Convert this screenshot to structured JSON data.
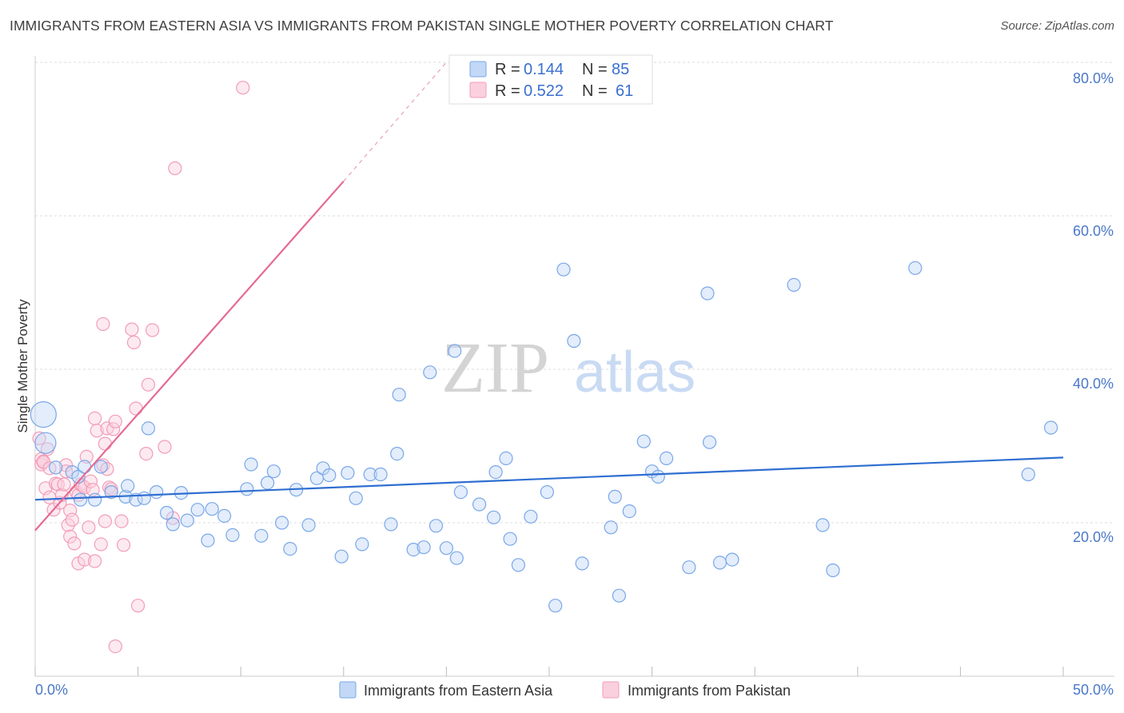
{
  "title": "IMMIGRANTS FROM EASTERN ASIA VS IMMIGRANTS FROM PAKISTAN SINGLE MOTHER POVERTY CORRELATION CHART",
  "source": "Source: ZipAtlas.com",
  "watermark": {
    "zip": "ZIP",
    "atlas": "atlas"
  },
  "legend_top": [
    {
      "r_label": "R =",
      "r_value": "0.144",
      "n_label": "N =",
      "n_value": "85",
      "color": "#7aa7e8"
    },
    {
      "r_label": "R =",
      "r_value": "0.522",
      "n_label": "N =",
      "n_value": "61",
      "color": "#f29db8"
    }
  ],
  "chart_data": {
    "type": "scatter",
    "title": "IMMIGRANTS FROM EASTERN ASIA VS IMMIGRANTS FROM PAKISTAN SINGLE MOTHER POVERTY CORRELATION CHART",
    "xlabel": "",
    "ylabel": "Single Mother Poverty",
    "xlim": [
      0,
      50
    ],
    "ylim": [
      0,
      80
    ],
    "x_tick_labels": [
      "0.0%",
      "50.0%"
    ],
    "y_ticks": [
      20,
      40,
      60,
      80
    ],
    "y_tick_labels": [
      "20.0%",
      "40.0%",
      "60.0%",
      "80.0%"
    ],
    "grid": true,
    "series": [
      {
        "name": "Immigrants from Eastern Asia",
        "color": "#7aa7e8",
        "trend": {
          "x0": 0,
          "y0": 23.0,
          "x1": 50,
          "y1": 28.5
        },
        "points": [
          [
            0.4,
            34.1
          ],
          [
            0.5,
            30.4
          ],
          [
            1.0,
            27.2
          ],
          [
            1.8,
            26.6
          ],
          [
            2.1,
            26.0
          ],
          [
            2.2,
            23.0
          ],
          [
            2.4,
            27.3
          ],
          [
            2.9,
            23.0
          ],
          [
            3.2,
            27.3
          ],
          [
            3.7,
            24.0
          ],
          [
            4.4,
            23.4
          ],
          [
            4.5,
            24.8
          ],
          [
            4.9,
            23.0
          ],
          [
            5.3,
            23.2
          ],
          [
            5.5,
            32.3
          ],
          [
            5.9,
            24.0
          ],
          [
            6.4,
            21.3
          ],
          [
            6.7,
            19.8
          ],
          [
            7.1,
            23.9
          ],
          [
            7.4,
            20.3
          ],
          [
            7.9,
            21.7
          ],
          [
            8.4,
            17.7
          ],
          [
            8.6,
            21.8
          ],
          [
            9.2,
            20.9
          ],
          [
            9.6,
            18.4
          ],
          [
            10.3,
            24.4
          ],
          [
            10.5,
            27.6
          ],
          [
            11.0,
            18.3
          ],
          [
            11.3,
            25.2
          ],
          [
            11.6,
            26.7
          ],
          [
            12.0,
            20.0
          ],
          [
            12.4,
            16.6
          ],
          [
            12.7,
            24.3
          ],
          [
            13.3,
            19.7
          ],
          [
            13.7,
            25.8
          ],
          [
            14.0,
            27.1
          ],
          [
            14.3,
            26.2
          ],
          [
            14.9,
            15.6
          ],
          [
            15.2,
            26.5
          ],
          [
            15.6,
            23.2
          ],
          [
            15.9,
            17.2
          ],
          [
            16.3,
            26.3
          ],
          [
            16.8,
            26.3
          ],
          [
            17.3,
            19.8
          ],
          [
            17.6,
            29.0
          ],
          [
            17.7,
            36.7
          ],
          [
            18.4,
            16.5
          ],
          [
            18.9,
            16.8
          ],
          [
            19.2,
            39.6
          ],
          [
            19.5,
            19.6
          ],
          [
            20.0,
            16.7
          ],
          [
            20.4,
            42.4
          ],
          [
            20.5,
            15.4
          ],
          [
            20.7,
            24.0
          ],
          [
            21.6,
            22.4
          ],
          [
            22.3,
            20.7
          ],
          [
            22.4,
            26.6
          ],
          [
            22.9,
            28.4
          ],
          [
            23.1,
            17.9
          ],
          [
            23.5,
            14.5
          ],
          [
            24.1,
            20.8
          ],
          [
            24.9,
            24.0
          ],
          [
            25.3,
            9.2
          ],
          [
            25.7,
            53.0
          ],
          [
            26.2,
            43.7
          ],
          [
            26.6,
            14.7
          ],
          [
            28.0,
            19.4
          ],
          [
            28.2,
            23.4
          ],
          [
            28.4,
            10.5
          ],
          [
            28.9,
            21.5
          ],
          [
            29.6,
            30.6
          ],
          [
            30.0,
            26.7
          ],
          [
            30.3,
            26.0
          ],
          [
            30.7,
            28.4
          ],
          [
            31.8,
            14.2
          ],
          [
            32.7,
            49.9
          ],
          [
            32.8,
            30.5
          ],
          [
            33.3,
            14.8
          ],
          [
            33.9,
            15.2
          ],
          [
            36.9,
            51.0
          ],
          [
            38.3,
            19.7
          ],
          [
            38.8,
            13.8
          ],
          [
            42.8,
            53.2
          ],
          [
            48.3,
            26.3
          ],
          [
            49.4,
            32.4
          ]
        ]
      },
      {
        "name": "Immigrants from Pakistan",
        "color": "#f29db8",
        "trend": {
          "x0": 0,
          "y0": 19.0,
          "x1": 15.0,
          "y1": 64.5
        },
        "trend_dashed": {
          "x0": 15.0,
          "y0": 64.5,
          "x1": 20.0,
          "y1": 80.0
        },
        "points": [
          [
            0.2,
            31.0
          ],
          [
            0.3,
            28.3
          ],
          [
            0.3,
            27.6
          ],
          [
            0.4,
            28.0
          ],
          [
            0.4,
            27.9
          ],
          [
            0.5,
            24.5
          ],
          [
            0.6,
            29.6
          ],
          [
            0.7,
            23.3
          ],
          [
            0.7,
            27.1
          ],
          [
            0.9,
            21.7
          ],
          [
            1.0,
            25.1
          ],
          [
            1.1,
            25.0
          ],
          [
            1.2,
            22.6
          ],
          [
            1.3,
            23.6
          ],
          [
            1.4,
            25.0
          ],
          [
            1.5,
            27.5
          ],
          [
            1.5,
            26.7
          ],
          [
            1.6,
            19.7
          ],
          [
            1.7,
            21.6
          ],
          [
            1.7,
            18.2
          ],
          [
            1.8,
            20.4
          ],
          [
            1.9,
            17.3
          ],
          [
            2.0,
            24.0
          ],
          [
            2.1,
            23.6
          ],
          [
            2.1,
            14.7
          ],
          [
            2.2,
            25.0
          ],
          [
            2.3,
            24.8
          ],
          [
            2.4,
            15.2
          ],
          [
            2.4,
            24.6
          ],
          [
            2.5,
            28.6
          ],
          [
            2.6,
            19.4
          ],
          [
            2.7,
            25.4
          ],
          [
            2.8,
            24.3
          ],
          [
            2.9,
            33.6
          ],
          [
            2.9,
            15.0
          ],
          [
            3.0,
            32.0
          ],
          [
            3.2,
            17.2
          ],
          [
            3.3,
            45.9
          ],
          [
            3.3,
            27.5
          ],
          [
            3.4,
            20.2
          ],
          [
            3.4,
            30.3
          ],
          [
            3.5,
            32.3
          ],
          [
            3.5,
            27.0
          ],
          [
            3.6,
            24.6
          ],
          [
            3.7,
            24.4
          ],
          [
            3.8,
            32.2
          ],
          [
            3.9,
            3.9
          ],
          [
            3.9,
            33.2
          ],
          [
            4.2,
            20.2
          ],
          [
            4.3,
            17.1
          ],
          [
            4.7,
            45.2
          ],
          [
            4.8,
            43.5
          ],
          [
            4.9,
            34.9
          ],
          [
            5.0,
            9.2
          ],
          [
            5.4,
            29.0
          ],
          [
            5.5,
            38.0
          ],
          [
            5.7,
            45.1
          ],
          [
            6.3,
            29.9
          ],
          [
            6.7,
            20.6
          ],
          [
            6.8,
            66.2
          ],
          [
            10.1,
            76.7
          ]
        ]
      }
    ]
  },
  "legend_bottom": [
    {
      "label": "Immigrants from Eastern Asia",
      "color": "#7aa7e8"
    },
    {
      "label": "Immigrants from Pakistan",
      "color": "#f29db8"
    }
  ]
}
